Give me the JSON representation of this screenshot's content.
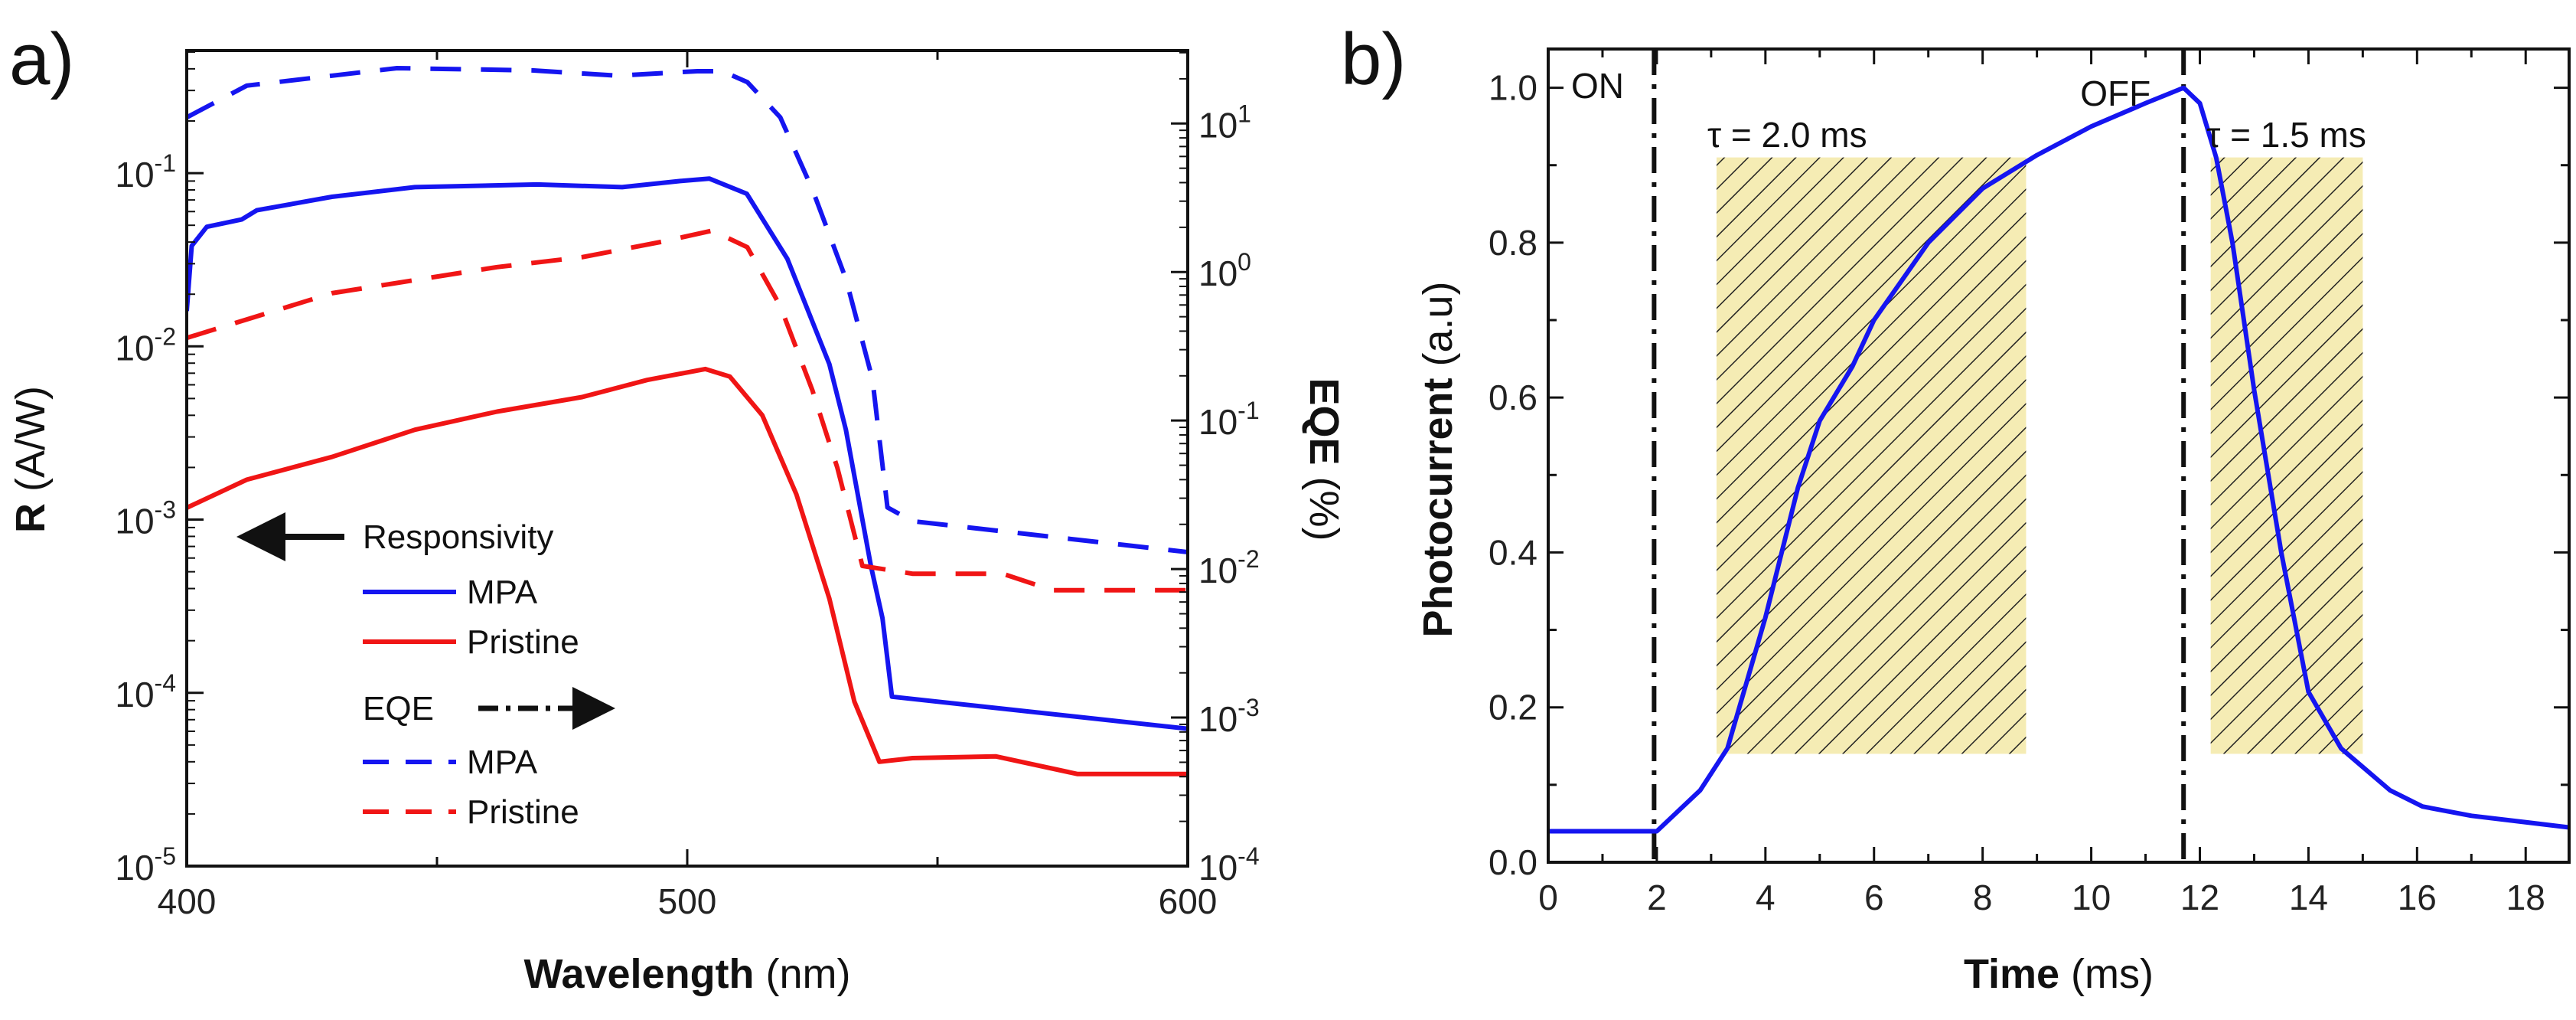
{
  "chart_data": [
    {
      "type": "line",
      "panel_label": "a)",
      "xlabel_bold": "Wavelength",
      "xlabel_unit": " (nm)",
      "ylabel_bold": "R",
      "ylabel_unit": " (A/W)",
      "y2label_bold": "EQE",
      "y2label_unit": " (%)",
      "xlim": [
        400,
        600
      ],
      "ylim": [
        1e-05,
        0.51
      ],
      "y2lim": [
        0.0001,
        31
      ],
      "yscale": "log",
      "y2scale": "log",
      "grid": false,
      "xticks": [
        400,
        500,
        600
      ],
      "xtick_labels": [
        "400",
        "500",
        "600"
      ],
      "yticks": [
        1e-05,
        0.0001,
        0.001,
        0.01,
        0.1
      ],
      "ytick_labels": [
        "10^-5",
        "10^-4",
        "10^-3",
        "10^-2",
        "10^-1"
      ],
      "y2ticks": [
        0.0001,
        0.001,
        0.01,
        0.1,
        1,
        10
      ],
      "y2tick_labels": [
        "10^-4",
        "10^-3",
        "10^-2",
        "10^-1",
        "10^0",
        "10^1"
      ],
      "legend": {
        "placement": "bottom-left",
        "group1_title": "Responsivity",
        "group2_title": "EQE",
        "entries": [
          "MPA",
          "Pristine",
          "MPA",
          "Pristine"
        ]
      },
      "series": [
        {
          "name": "MPA",
          "group": "Responsivity",
          "axis": "left",
          "color": "#1515f0",
          "dash": "solid",
          "x": [
            400,
            401,
            404,
            411,
            414,
            429,
            445.6,
            470,
            487,
            498.6,
            504.4,
            511.9,
            520,
            528.4,
            531.7,
            536.7,
            539,
            540.9,
            600
          ],
          "y": [
            0.016,
            0.038,
            0.049,
            0.054,
            0.061,
            0.073,
            0.083,
            0.086,
            0.083,
            0.09,
            0.093,
            0.076,
            0.032,
            0.0079,
            0.0033,
            0.00054,
            0.00027,
            9.5e-05,
            6.2e-05
          ]
        },
        {
          "name": "Pristine",
          "group": "Responsivity",
          "axis": "left",
          "color": "#f01515",
          "dash": "solid",
          "x": [
            400,
            412,
            429,
            445.6,
            462,
            479,
            492,
            503.6,
            508.5,
            515,
            521.8,
            528.4,
            533.4,
            538.4,
            545,
            561.6,
            578,
            600
          ],
          "y": [
            0.00117,
            0.0017,
            0.0023,
            0.0033,
            0.0042,
            0.0051,
            0.0064,
            0.0074,
            0.0067,
            0.004,
            0.0014,
            0.00035,
            8.9e-05,
            4e-05,
            4.2e-05,
            4.3e-05,
            3.4e-05,
            3.4e-05
          ]
        },
        {
          "name": "MPA",
          "group": "EQE",
          "axis": "right",
          "color": "#1515f0",
          "dash": "dashed",
          "x": [
            400,
            412,
            442,
            469,
            486,
            502,
            507,
            512,
            518.6,
            525,
            531.7,
            537,
            540,
            545,
            600
          ],
          "y": [
            11,
            18,
            23.6,
            22.8,
            21,
            22.5,
            22.5,
            19,
            11,
            3.6,
            0.9,
            0.19,
            0.026,
            0.021,
            0.013
          ]
        },
        {
          "name": "Pristine",
          "group": "EQE",
          "axis": "right",
          "color": "#f01515",
          "dash": "dashed",
          "x": [
            400,
            429,
            462,
            479,
            495,
            505,
            512,
            518.6,
            525,
            530,
            535,
            545,
            563,
            573,
            600
          ],
          "y": [
            0.36,
            0.72,
            1.08,
            1.26,
            1.6,
            1.9,
            1.47,
            0.59,
            0.16,
            0.048,
            0.0105,
            0.0093,
            0.0093,
            0.0072,
            0.0072
          ]
        }
      ]
    },
    {
      "type": "line",
      "panel_label": "b)",
      "xlabel_bold": "Time",
      "xlabel_unit": " (ms)",
      "ylabel_bold": "Photocurrent",
      "ylabel_unit": " (a.u)",
      "xlim": [
        0,
        18.8
      ],
      "ylim": [
        0,
        1.05
      ],
      "grid": false,
      "xticks": [
        0,
        2,
        4,
        6,
        8,
        10,
        12,
        14,
        16,
        18
      ],
      "xtick_labels": [
        "0",
        "2",
        "4",
        "6",
        "8",
        "10",
        "12",
        "14",
        "16",
        "18"
      ],
      "yticks": [
        0,
        0.2,
        0.4,
        0.6,
        0.8,
        1.0
      ],
      "ytick_labels": [
        "0.0",
        "0.2",
        "0.4",
        "0.6",
        "0.8",
        "1.0"
      ],
      "annotations": {
        "on_label": "ON",
        "off_label": "OFF",
        "on_time": 1.95,
        "off_time": 11.7,
        "rise_label": "τ = 2.0 ms",
        "fall_label": "τ = 1.5 ms",
        "rise_region": {
          "x": [
            3.1,
            8.8
          ],
          "y": [
            0.14,
            0.91
          ]
        },
        "fall_region": {
          "x": [
            12.2,
            15.0
          ],
          "y": [
            0.14,
            0.91
          ]
        },
        "region_color": "#f5ecb4"
      },
      "series": [
        {
          "color": "#1515f0",
          "x": [
            0,
            2.0,
            2.8,
            3.3,
            4.0,
            4.6,
            5.0,
            5.6,
            6,
            7,
            8,
            9,
            10,
            11,
            11.7,
            12.0,
            12.3,
            12.6,
            13,
            13.5,
            14,
            14.6,
            15.5,
            16.1,
            17,
            18.8
          ],
          "y": [
            0.04,
            0.04,
            0.093,
            0.147,
            0.316,
            0.484,
            0.57,
            0.64,
            0.7,
            0.8,
            0.87,
            0.913,
            0.95,
            0.98,
            1.0,
            0.98,
            0.91,
            0.8,
            0.61,
            0.4,
            0.22,
            0.147,
            0.093,
            0.072,
            0.06,
            0.045
          ]
        }
      ]
    }
  ]
}
